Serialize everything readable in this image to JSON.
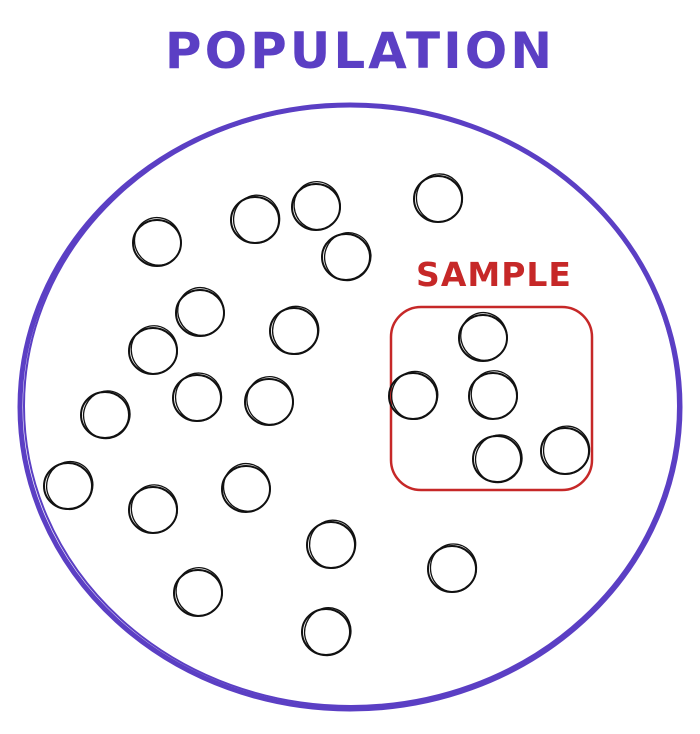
{
  "title": "POPULATION",
  "sample_label": "SAMPLE",
  "colors": {
    "population": "#5b3fc4",
    "sample": "#c62828",
    "member": "#111111"
  }
}
